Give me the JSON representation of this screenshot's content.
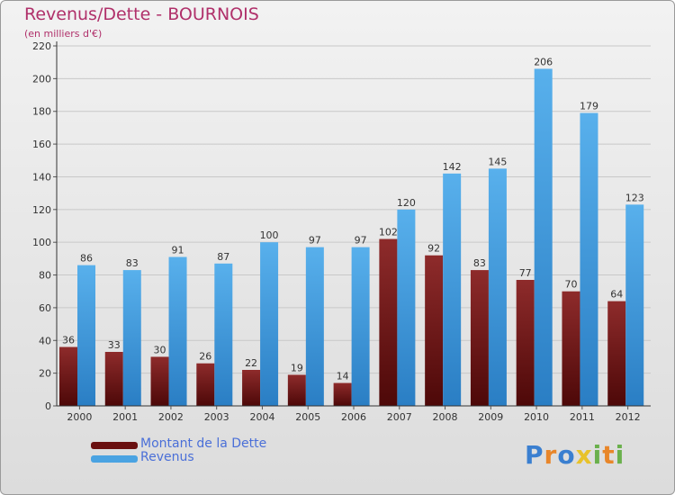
{
  "chart_data": {
    "type": "bar",
    "title": "Revenus/Dette - BOURNOIS",
    "subtitle": "(en milliers d'€)",
    "categories": [
      "2000",
      "2001",
      "2002",
      "2003",
      "2004",
      "2005",
      "2006",
      "2007",
      "2008",
      "2009",
      "2010",
      "2011",
      "2012"
    ],
    "series": [
      {
        "name": "Montant de la Dette",
        "color": "#7a1a1a",
        "values": [
          36,
          33,
          30,
          26,
          22,
          19,
          14,
          102,
          92,
          83,
          77,
          70,
          64
        ]
      },
      {
        "name": "Revenus",
        "color": "#4aa3e2",
        "values": [
          86,
          83,
          91,
          87,
          100,
          97,
          97,
          120,
          142,
          145,
          206,
          179,
          123
        ]
      }
    ],
    "ylim": [
      0,
      220
    ],
    "yticks": [
      0,
      20,
      40,
      60,
      80,
      100,
      120,
      140,
      160,
      180,
      200,
      220
    ],
    "grid": true,
    "legend": "bottom-left"
  },
  "logo": {
    "letters": [
      "P",
      "r",
      "o",
      "x",
      "i",
      "t",
      "i"
    ],
    "colors": [
      "#3a7fd0",
      "#e8862a",
      "#3a7fd0",
      "#e8c22a",
      "#6ab04c",
      "#e8862a",
      "#6ab04c"
    ]
  }
}
